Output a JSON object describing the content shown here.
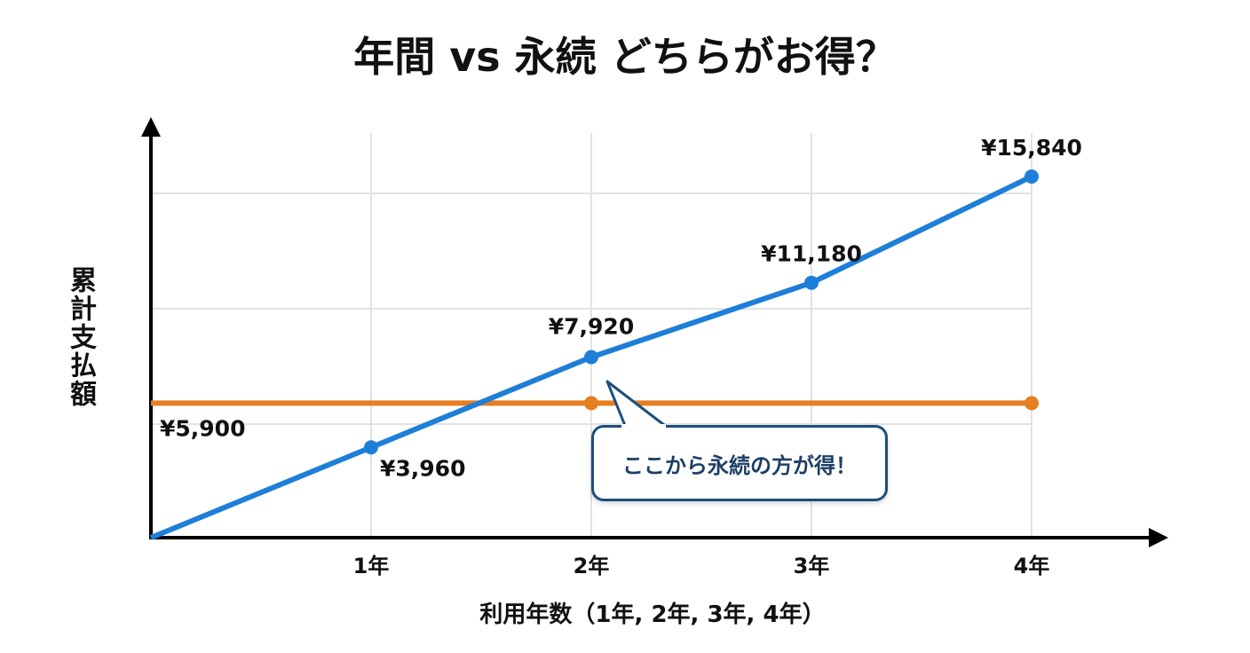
{
  "chart_data": {
    "type": "line",
    "title": "年間 vs 永続 どちらがお得？",
    "xlabel": "利用年数（1年, 2年, 3年, 4年）",
    "ylabel": "累計支払額",
    "x": [
      0,
      1,
      2,
      3,
      4
    ],
    "x_tick_labels": [
      "1年",
      "2年",
      "3年",
      "4年"
    ],
    "ylim": [
      0,
      15840
    ],
    "grid": true,
    "series": [
      {
        "name": "年間",
        "color": "#1e7fd8",
        "values": [
          0,
          3960,
          7920,
          11180,
          15840
        ],
        "labels": [
          "",
          "¥3,960",
          "¥7,920",
          "¥11,180",
          "¥15,840"
        ]
      },
      {
        "name": "永続",
        "color": "#e67e22",
        "values": [
          5900,
          5900,
          5900,
          5900,
          5900
        ],
        "labels": [
          "¥5,900"
        ]
      }
    ],
    "annotation": "ここから永続の方が得！"
  }
}
